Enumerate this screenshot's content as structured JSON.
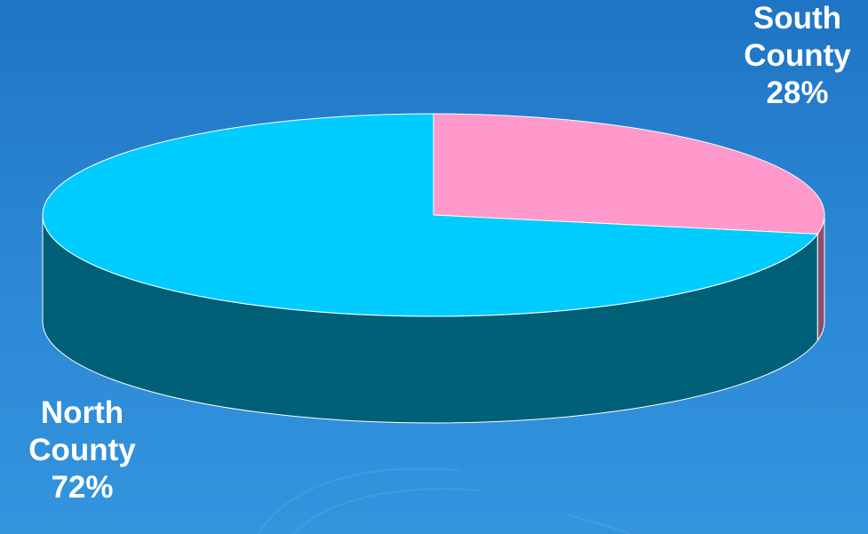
{
  "chart_data": {
    "type": "pie",
    "three_d": true,
    "slices": [
      {
        "name": "South County",
        "value": 28,
        "label": "28%",
        "color": "#ff99cc",
        "side_color": "#8a4f6b"
      },
      {
        "name": "North County",
        "value": 72,
        "label": "72%",
        "color": "#00ccff",
        "side_color": "#006077"
      }
    ]
  },
  "labels": {
    "south": {
      "line1": "South",
      "line2": "County",
      "percent": "28%"
    },
    "north": {
      "line1": "North",
      "line2": "County",
      "percent": "72%"
    }
  },
  "colors": {
    "background": "#2a86d3",
    "text": "#ffffff"
  }
}
